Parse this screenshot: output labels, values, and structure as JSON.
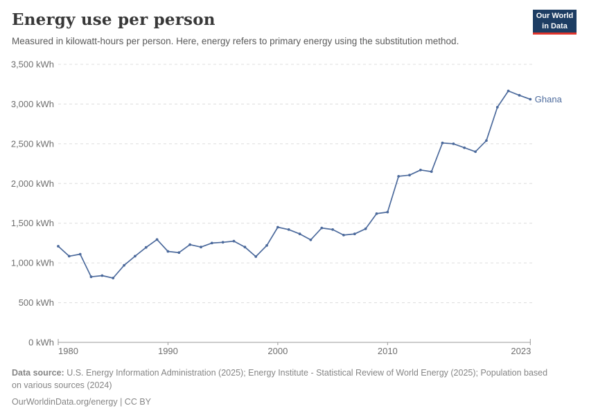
{
  "header": {
    "title": "Energy use per person",
    "subtitle": "Measured in kilowatt-hours per person. Here, energy refers to primary energy using the substitution method."
  },
  "logo": {
    "line1": "Our World",
    "line2": "in Data",
    "bg_color": "#1d3d63",
    "accent_color": "#e0342c"
  },
  "chart_data": {
    "type": "line",
    "title": "Energy use per person",
    "unit": "kWh",
    "x": [
      1980,
      1981,
      1982,
      1983,
      1984,
      1985,
      1986,
      1987,
      1988,
      1989,
      1990,
      1991,
      1992,
      1993,
      1994,
      1995,
      1996,
      1997,
      1998,
      1999,
      2000,
      2001,
      2002,
      2003,
      2004,
      2005,
      2006,
      2007,
      2008,
      2009,
      2010,
      2011,
      2012,
      2013,
      2014,
      2015,
      2016,
      2017,
      2018,
      2019,
      2020,
      2021,
      2022,
      2023
    ],
    "series": [
      {
        "name": "Ghana",
        "color": "#4C6A9C",
        "values": [
          1210,
          1085,
          1110,
          825,
          840,
          810,
          970,
          1085,
          1195,
          1295,
          1145,
          1130,
          1230,
          1200,
          1250,
          1260,
          1275,
          1200,
          1080,
          1220,
          1450,
          1420,
          1365,
          1290,
          1440,
          1420,
          1350,
          1365,
          1430,
          1620,
          1640,
          2090,
          2105,
          2170,
          2150,
          2510,
          2500,
          2450,
          2400,
          2540,
          2960,
          3165,
          3110,
          3060
        ]
      }
    ],
    "xlim": [
      1980,
      2023
    ],
    "ylim": [
      0,
      3500
    ],
    "yticks": [
      0,
      500,
      1000,
      1500,
      2000,
      2500,
      3000,
      3500
    ],
    "ytick_suffix": " kWh",
    "xticks": [
      1980,
      1990,
      2000,
      2010,
      2023
    ],
    "grid": "horizontal-dashed",
    "legend_position": "end-of-line",
    "colors": {
      "line": "#4C6A9C",
      "tick_label": "#6e6e6e",
      "grid": "#dcdcdc",
      "axis": "#999999"
    }
  },
  "footer": {
    "source_label": "Data source:",
    "source_text": " U.S. Energy Information Administration (2025); Energy Institute - Statistical Review of World Energy (2025); Population based on various sources (2024)",
    "license_text": "OurWorldinData.org/energy | CC BY"
  }
}
